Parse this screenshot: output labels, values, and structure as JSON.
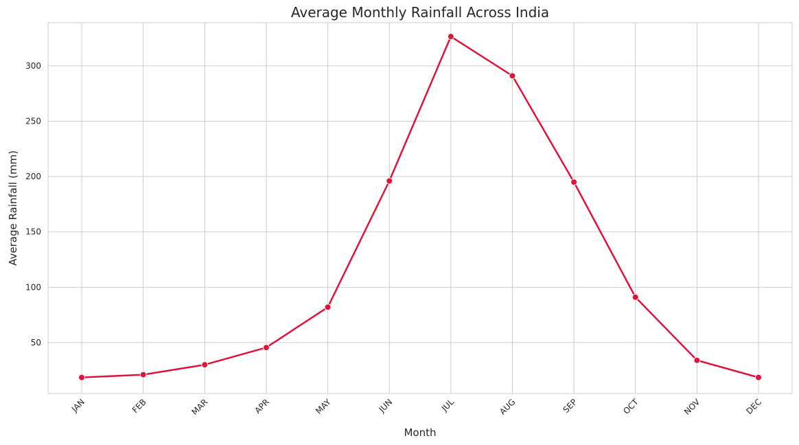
{
  "chart_data": {
    "type": "line",
    "title": "Average Monthly Rainfall Across India",
    "xlabel": "Month",
    "ylabel": "Average Rainfall (mm)",
    "categories": [
      "JAN",
      "FEB",
      "MAR",
      "APR",
      "MAY",
      "JUN",
      "JUL",
      "AUG",
      "SEP",
      "OCT",
      "NOV",
      "DEC"
    ],
    "series": [
      {
        "values": [
          18.5,
          21,
          30,
          45.5,
          82,
          196,
          326.5,
          291,
          195,
          91,
          34,
          18.5
        ],
        "color": "#dc143c"
      }
    ],
    "yticks": [
      50,
      100,
      150,
      200,
      250,
      300
    ],
    "ylim": [
      4,
      339
    ],
    "grid": true,
    "legend": "none"
  }
}
